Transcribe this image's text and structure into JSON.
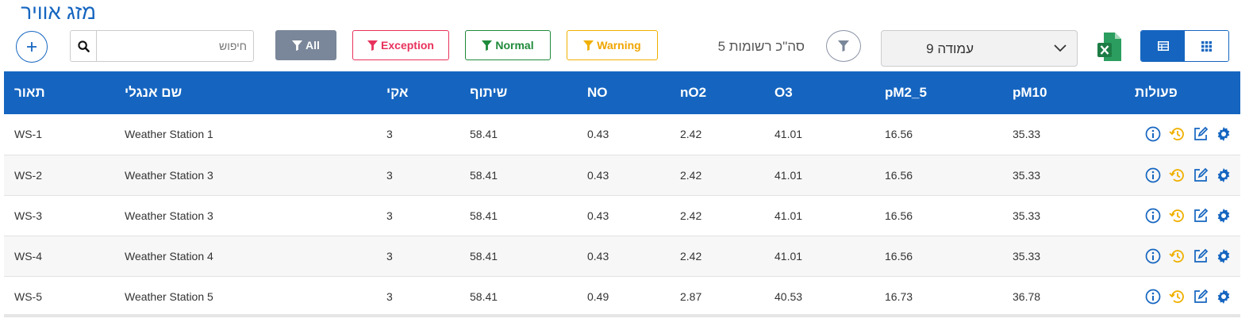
{
  "page": {
    "title": "מזג אוויר"
  },
  "toolbar": {
    "search_placeholder": "חיפוש",
    "filters": {
      "all": "All",
      "exception": "Exception",
      "normal": "Normal",
      "warning": "Warning"
    },
    "records_label": "סה\"כ רשומות 5",
    "page_select_value": "עמודה 9"
  },
  "colors": {
    "primary": "#1565c0",
    "exception": "#e8325c",
    "normal": "#1f8a3b",
    "warning": "#f0a500",
    "all_bg": "#7a8699",
    "excel": "#21a366"
  },
  "icons": [
    "plus-icon",
    "search-icon",
    "funnel-icon",
    "chevron-down-icon",
    "excel-icon",
    "table-view-icon",
    "grid-view-icon",
    "info-icon",
    "history-icon",
    "edit-icon",
    "gear-icon"
  ],
  "table": {
    "headers": {
      "desc": "תאור",
      "english_name": "שם אנגלי",
      "vertical": "אקי",
      "share": "שיתוף",
      "no": "NO",
      "no2": "nO2",
      "o3": "O3",
      "pm25": "pM2_5",
      "pm10": "pM10",
      "actions": "פעולות"
    },
    "rows": [
      {
        "desc": "WS-1",
        "english_name": "Weather Station 1",
        "vertical": "3",
        "share": "58.41",
        "no": "0.43",
        "no2": "2.42",
        "o3": "41.01",
        "pm25": "16.56",
        "pm10": "35.33"
      },
      {
        "desc": "WS-2",
        "english_name": "Weather Station 3",
        "vertical": "3",
        "share": "58.41",
        "no": "0.43",
        "no2": "2.42",
        "o3": "41.01",
        "pm25": "16.56",
        "pm10": "35.33"
      },
      {
        "desc": "WS-3",
        "english_name": "Weather Station 3",
        "vertical": "3",
        "share": "58.41",
        "no": "0.43",
        "no2": "2.42",
        "o3": "41.01",
        "pm25": "16.56",
        "pm10": "35.33"
      },
      {
        "desc": "WS-4",
        "english_name": "Weather Station 4",
        "vertical": "3",
        "share": "58.41",
        "no": "0.43",
        "no2": "2.42",
        "o3": "41.01",
        "pm25": "16.56",
        "pm10": "35.33"
      },
      {
        "desc": "WS-5",
        "english_name": "Weather Station 5",
        "vertical": "3",
        "share": "58.41",
        "no": "0.49",
        "no2": "2.87",
        "o3": "40.53",
        "pm25": "16.73",
        "pm10": "36.78"
      }
    ]
  }
}
